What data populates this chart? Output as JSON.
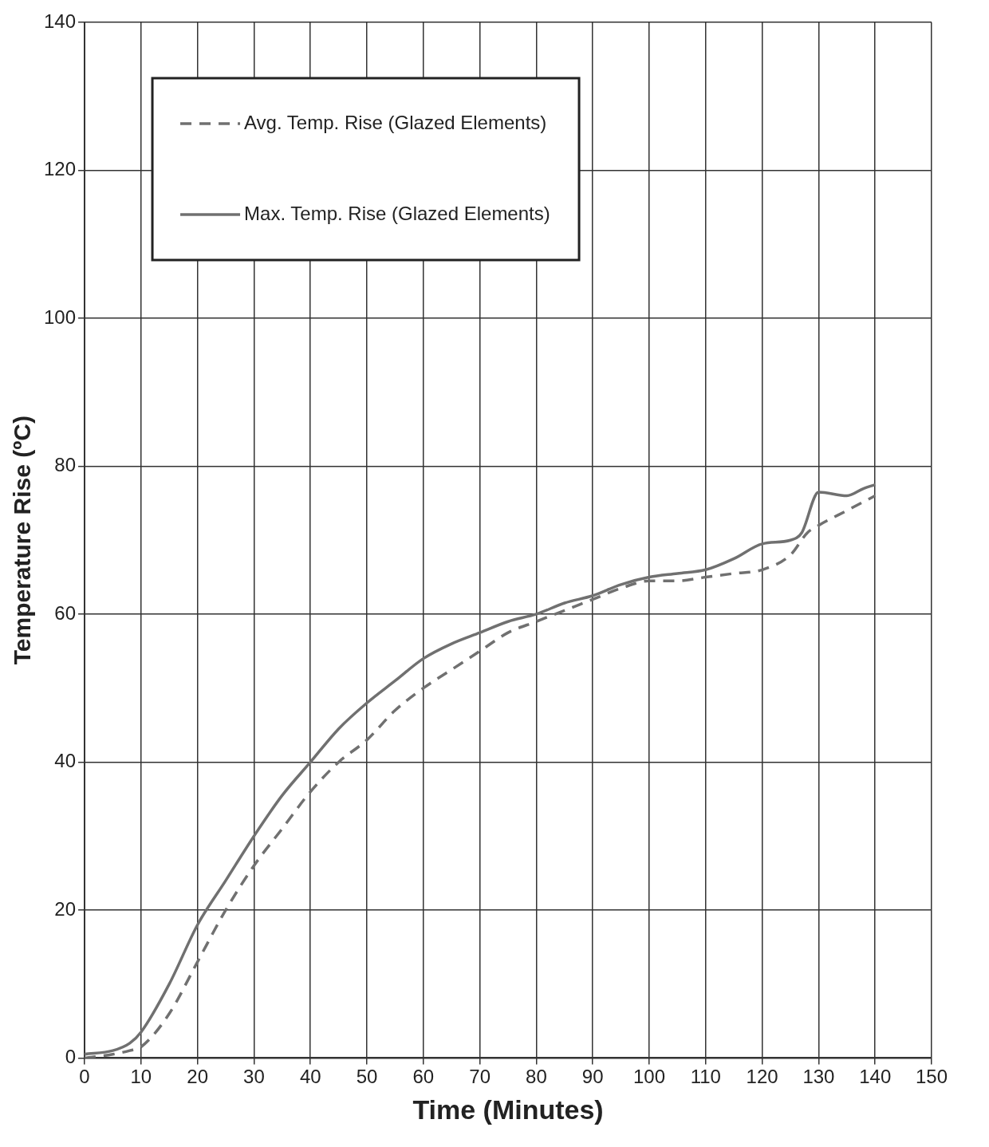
{
  "chart_data": {
    "type": "line",
    "xlabel": "Time (Minutes)",
    "ylabel": "Temperature Rise (ºC)",
    "xlim": [
      0,
      150
    ],
    "xticks": [
      0,
      10,
      20,
      30,
      40,
      50,
      60,
      70,
      80,
      90,
      100,
      110,
      120,
      130,
      140,
      150
    ],
    "ylim": [
      0,
      140
    ],
    "yticks": [
      0,
      20,
      40,
      60,
      80,
      100,
      120,
      140
    ],
    "grid": true,
    "legend": "top left",
    "marker": "none",
    "series": [
      {
        "name": "Avg. Temp. Rise (Glazed Elements)",
        "color": "#707070",
        "line_style": "dashed",
        "x": [
          0,
          5,
          8,
          10,
          15,
          20,
          25,
          30,
          35,
          40,
          45,
          50,
          55,
          60,
          65,
          70,
          75,
          80,
          85,
          90,
          95,
          100,
          105,
          110,
          115,
          120,
          125,
          128,
          130,
          135,
          140
        ],
        "values": [
          0,
          0.5,
          1,
          1.5,
          6,
          13,
          20,
          26,
          31,
          36,
          40,
          43,
          47,
          50,
          52.5,
          55,
          57.5,
          59,
          60.5,
          62,
          63.5,
          64.5,
          64.5,
          65,
          65.5,
          66,
          68,
          71,
          72,
          74,
          76
        ]
      },
      {
        "name": "Max. Temp. Rise (Glazed Elements)",
        "color": "#707070",
        "line_style": "solid",
        "x": [
          0,
          5,
          8,
          10,
          15,
          20,
          25,
          30,
          35,
          40,
          45,
          50,
          55,
          60,
          65,
          70,
          75,
          80,
          85,
          90,
          95,
          100,
          105,
          110,
          115,
          120,
          125,
          127,
          130,
          135,
          138,
          140
        ],
        "values": [
          0.5,
          1,
          2,
          3.5,
          10,
          18,
          24,
          30,
          35.5,
          40,
          44.5,
          48,
          51,
          54,
          56,
          57.5,
          59,
          60,
          61.5,
          62.5,
          64,
          65,
          65.5,
          66,
          67.5,
          69.5,
          70,
          71,
          76.5,
          76,
          77,
          77.5
        ]
      }
    ]
  }
}
